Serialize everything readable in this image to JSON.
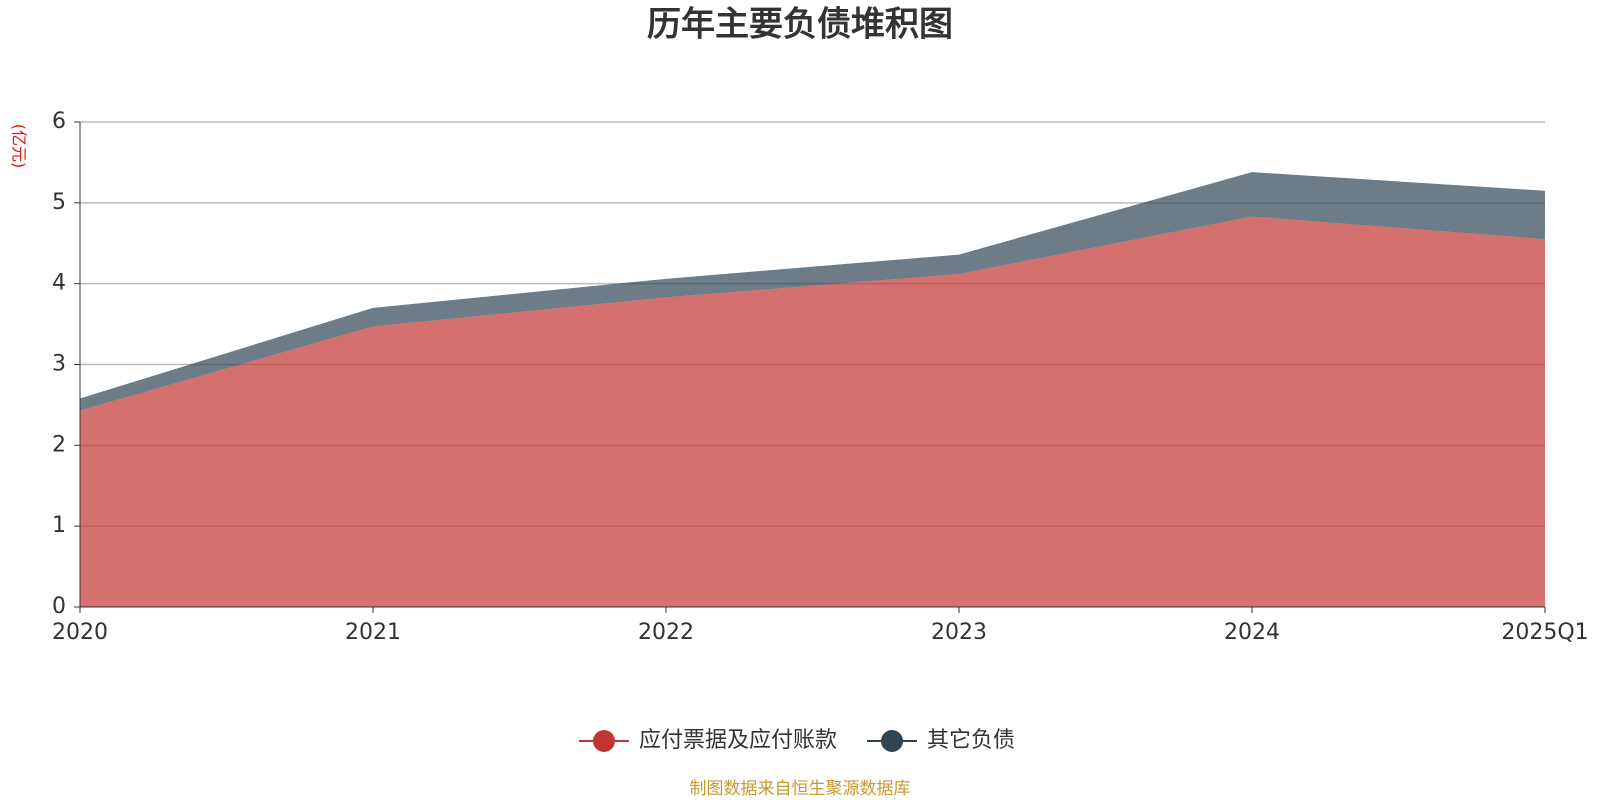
{
  "chart_data": {
    "type": "stacked-area",
    "title": "历年主要负债堆积图",
    "y_label": "(亿元)",
    "source": "制图数据来自恒生聚源数据库",
    "categories": [
      "2020",
      "2021",
      "2022",
      "2023",
      "2024",
      "2025Q1"
    ],
    "series": [
      {
        "name": "应付票据及应付账款",
        "color": "#c23531",
        "values": [
          2.43,
          3.47,
          3.83,
          4.12,
          4.83,
          4.55
        ]
      },
      {
        "name": "其它负债",
        "color": "#2f4554",
        "values": [
          0.15,
          0.23,
          0.23,
          0.24,
          0.55,
          0.6
        ]
      }
    ],
    "ylim": [
      0,
      6
    ],
    "yticks": [
      0,
      1,
      2,
      3,
      4,
      5,
      6
    ],
    "grid": true
  }
}
